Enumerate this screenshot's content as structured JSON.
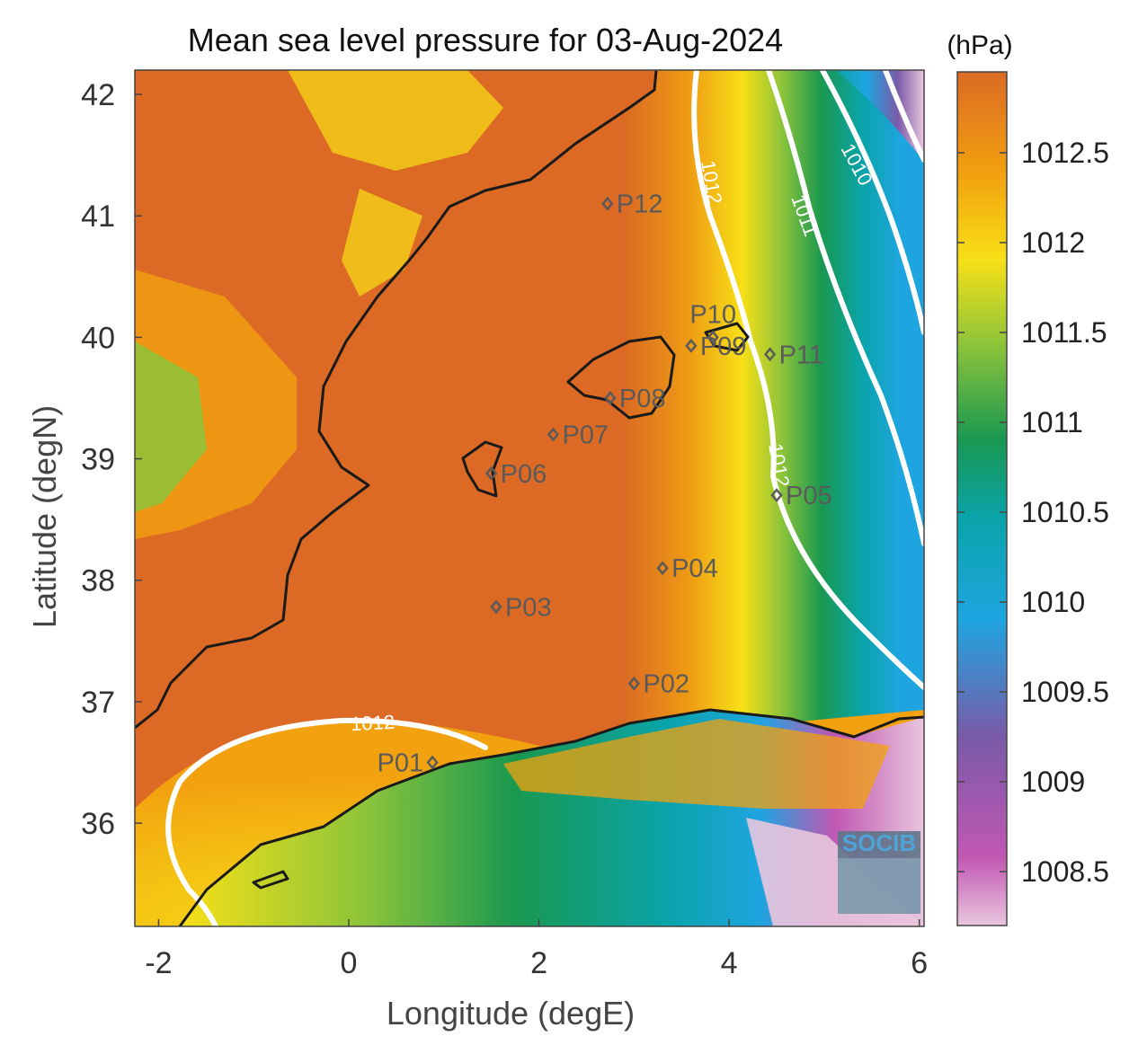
{
  "title": "Mean sea level pressure for 03-Aug-2024",
  "colorbar": {
    "unit": "(hPa)",
    "min": 1008.2,
    "max": 1012.95,
    "ticks": [
      "1012.5",
      "1012",
      "1011.5",
      "1011",
      "1010.5",
      "1010",
      "1009.5",
      "1009",
      "1008.5"
    ],
    "tick_values": [
      1012.5,
      1012,
      1011.5,
      1011,
      1010.5,
      1010,
      1009.5,
      1009,
      1008.5
    ],
    "colors": [
      "#e9b8d8",
      "#c157b3",
      "#7a5aa8",
      "#1ea5e0",
      "#0aa3a8",
      "#1a9850",
      "#8cc43a",
      "#f7e017",
      "#f2a10f",
      "#dc6a24"
    ]
  },
  "axes": {
    "xlabel": "Longitude (degE)",
    "ylabel": "Latitude (degN)",
    "xlim": [
      -2.25,
      6.05
    ],
    "ylim": [
      35.15,
      42.2
    ],
    "xticks": [
      -2,
      0,
      2,
      4,
      6
    ],
    "yticks": [
      36,
      37,
      38,
      39,
      40,
      41,
      42
    ],
    "xtick_labels": [
      "-2",
      "0",
      "2",
      "4",
      "6"
    ],
    "ytick_labels": [
      "36",
      "37",
      "38",
      "39",
      "40",
      "41",
      "42"
    ]
  },
  "contour_labels": [
    "1012",
    "1011",
    "1010",
    "1012",
    "1012"
  ],
  "points": [
    {
      "name": "P01",
      "lon": 0.88,
      "lat": 36.5
    },
    {
      "name": "P02",
      "lon": 3.0,
      "lat": 37.15
    },
    {
      "name": "P03",
      "lon": 1.55,
      "lat": 37.78
    },
    {
      "name": "P04",
      "lon": 3.3,
      "lat": 38.1
    },
    {
      "name": "P05",
      "lon": 4.5,
      "lat": 38.7
    },
    {
      "name": "P06",
      "lon": 1.5,
      "lat": 38.88
    },
    {
      "name": "P07",
      "lon": 2.15,
      "lat": 39.2
    },
    {
      "name": "P08",
      "lon": 2.75,
      "lat": 39.5
    },
    {
      "name": "P09",
      "lon": 3.6,
      "lat": 39.93
    },
    {
      "name": "P10",
      "lon": 3.83,
      "lat": 40.0
    },
    {
      "name": "P11",
      "lon": 4.43,
      "lat": 39.86
    },
    {
      "name": "P12",
      "lon": 2.72,
      "lat": 41.1
    }
  ],
  "logo": "SOCIB"
}
